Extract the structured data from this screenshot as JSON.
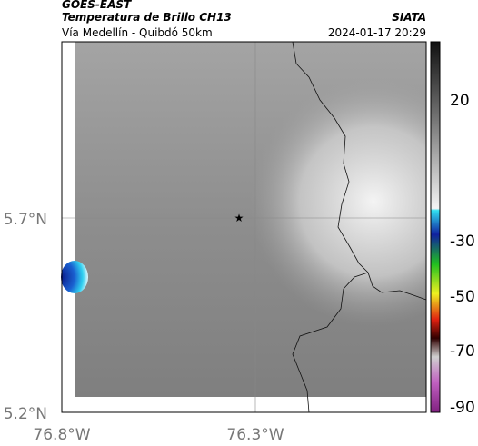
{
  "header": {
    "product": "GOES-EAST",
    "title": "Temperatura de Brillo CH13",
    "subtitle": "Vía Medellín - Quibdó 50km",
    "source": "SIATA",
    "datetime": "2024-01-17 20:29"
  },
  "map": {
    "x_labels": [
      "76.8°W",
      "76.3°W"
    ],
    "y_labels": [
      "5.7°N",
      "5.2°N"
    ]
  },
  "colorbar": {
    "labels": [
      "20",
      "-30",
      "-50",
      "-70",
      "-90"
    ]
  }
}
